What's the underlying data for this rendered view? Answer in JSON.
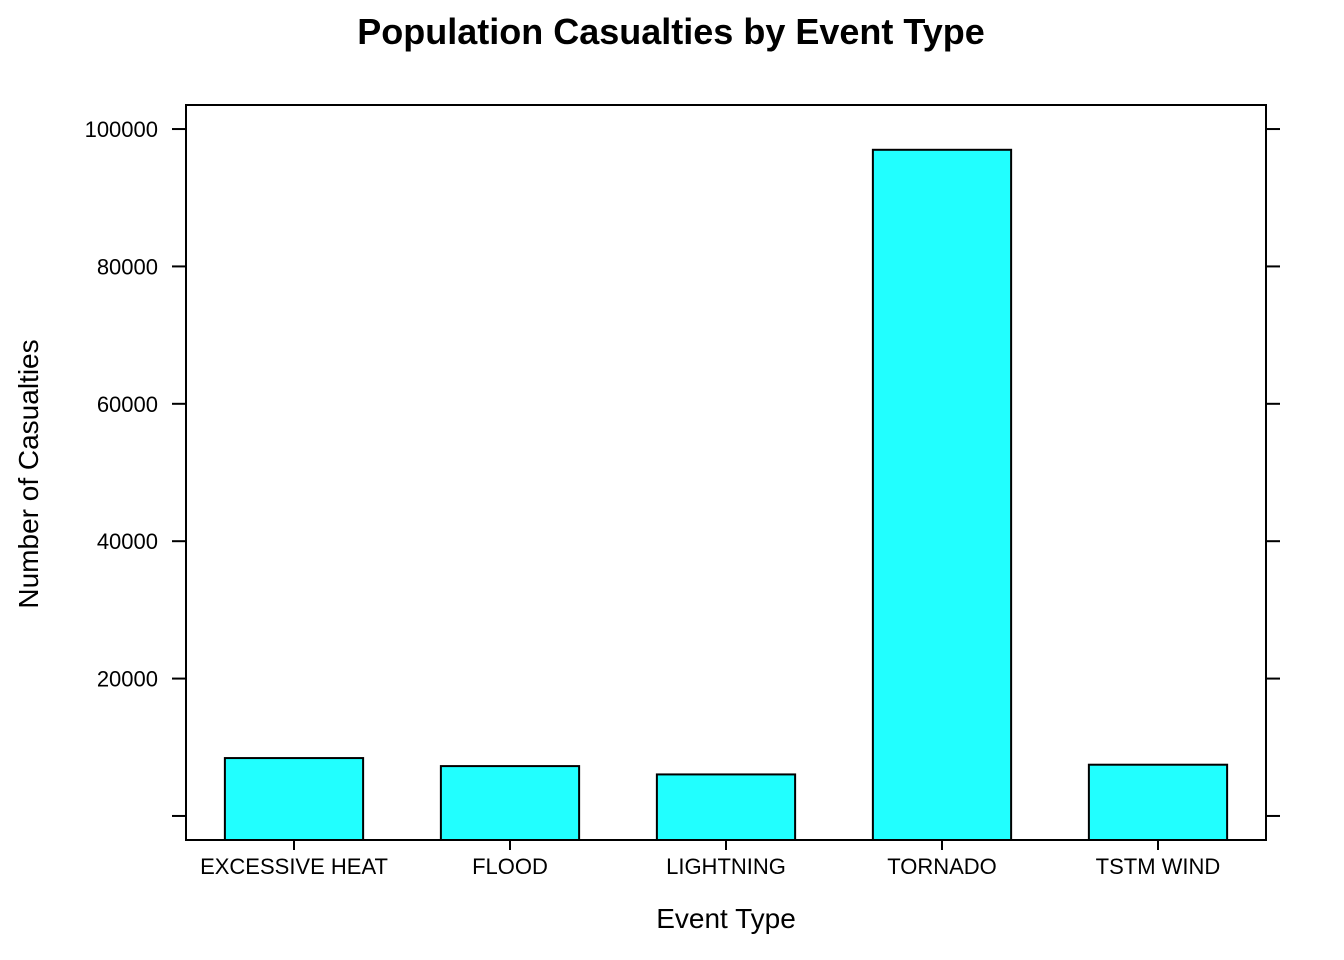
{
  "chart_data": {
    "type": "bar",
    "title": "Population Casualties by Event Type",
    "xlabel": "Event Type",
    "ylabel": "Number of Casualties",
    "categories": [
      "EXCESSIVE HEAT",
      "FLOOD",
      "LIGHTNING",
      "TORNADO",
      "TSTM WIND"
    ],
    "values": [
      8428,
      7259,
      6046,
      96979,
      7461
    ],
    "yticks": [
      20000,
      40000,
      60000,
      80000,
      100000
    ],
    "ytick_labels": [
      "20000",
      "40000",
      "60000",
      "80000",
      "100000"
    ],
    "ylim": [
      -3500,
      103500
    ],
    "grid": false,
    "legend": "none",
    "bar_color": "#21FFFF",
    "border_color": "#000000"
  }
}
